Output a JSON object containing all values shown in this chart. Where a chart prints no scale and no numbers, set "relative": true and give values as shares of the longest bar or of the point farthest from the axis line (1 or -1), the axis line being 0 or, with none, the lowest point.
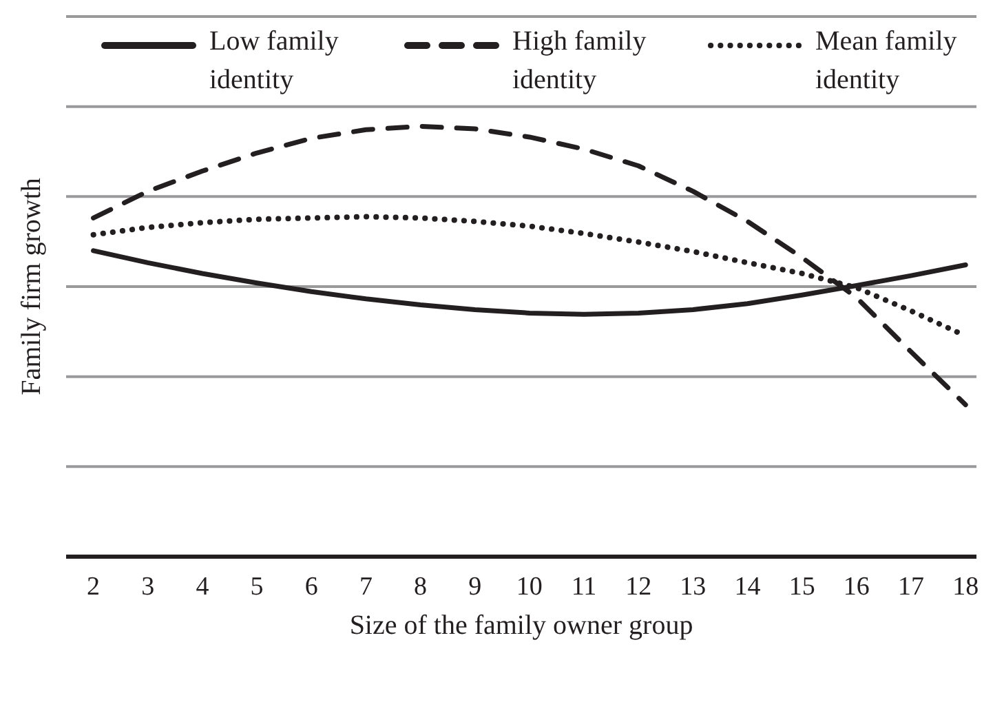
{
  "chart_data": {
    "type": "line",
    "relative": true,
    "xlabel": "Size of the family owner group",
    "ylabel": "Family firm growth",
    "x": [
      2,
      3,
      4,
      5,
      6,
      7,
      8,
      9,
      10,
      11,
      12,
      13,
      14,
      15,
      16,
      17,
      18
    ],
    "xlim": [
      1.5,
      18.2
    ],
    "xticks": [
      2,
      3,
      4,
      5,
      6,
      7,
      8,
      9,
      10,
      11,
      12,
      13,
      14,
      15,
      16,
      17,
      18
    ],
    "grid": "y",
    "legend": "top",
    "marker": "none",
    "series": [
      {
        "name": "Low family identity",
        "color": "#231f20",
        "line_style": "solid",
        "values": [
          0.711,
          0.683,
          0.658,
          0.636,
          0.616,
          0.599,
          0.585,
          0.574,
          0.566,
          0.563,
          0.566,
          0.574,
          0.588,
          0.608,
          0.63,
          0.653,
          0.678
        ]
      },
      {
        "name": "High family identity",
        "color": "#231f20",
        "line_style": "dashed",
        "values": [
          0.787,
          0.849,
          0.896,
          0.938,
          0.972,
          0.992,
          1,
          0.994,
          0.975,
          0.947,
          0.908,
          0.849,
          0.779,
          0.695,
          0.602,
          0.476,
          0.353
        ]
      },
      {
        "name": "Mean family identity",
        "color": "#231f20",
        "line_style": "dotted",
        "values": [
          0.748,
          0.765,
          0.776,
          0.784,
          0.787,
          0.79,
          0.787,
          0.779,
          0.768,
          0.751,
          0.731,
          0.709,
          0.683,
          0.658,
          0.625,
          0.571,
          0.513
        ]
      }
    ]
  }
}
